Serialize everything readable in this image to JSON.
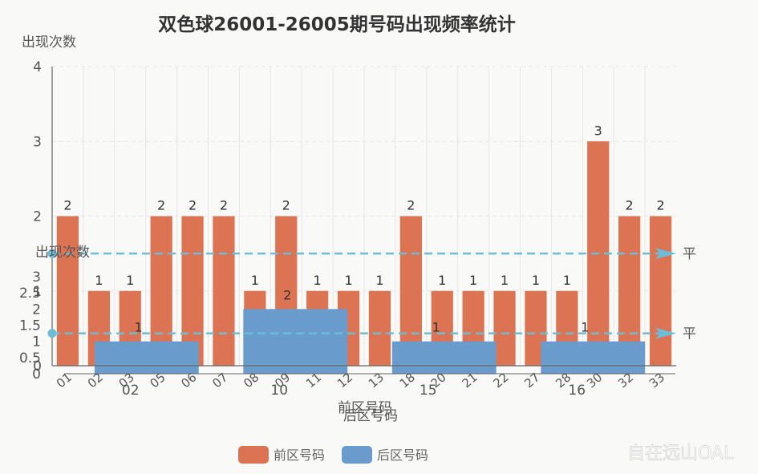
{
  "chart_title": "双色球26001-26005期号码出现频率统计",
  "watermark": "自在远山OAL",
  "colors": {
    "front": "#dc7453",
    "back": "#6a9bcd",
    "mean_line": "#6dbcd8",
    "grid": "#e6e6e6",
    "axis": "#666666"
  },
  "chart_data": [
    {
      "type": "bar",
      "ylabel": "出现次数",
      "xlabel": "前区号码",
      "ylim": [
        0,
        4
      ],
      "yticks": [
        "0",
        "1",
        "2",
        "3",
        "4"
      ],
      "grid": true,
      "legend_position": "bottom",
      "mean_line_label": "平",
      "categories": [
        "01",
        "02",
        "03",
        "05",
        "06",
        "07",
        "08",
        "09",
        "11",
        "12",
        "13",
        "18",
        "20",
        "21",
        "22",
        "27",
        "28",
        "30",
        "32",
        "33"
      ],
      "series": [
        {
          "name": "前区号码",
          "values": [
            2,
            1,
            1,
            2,
            2,
            2,
            1,
            2,
            1,
            1,
            1,
            2,
            1,
            1,
            1,
            1,
            1,
            3,
            2,
            2
          ]
        }
      ]
    },
    {
      "type": "bar",
      "ylabel": "出现次数",
      "xlabel": "后区号码",
      "ylim": [
        0,
        3
      ],
      "yticks": [
        "0",
        "0.5",
        "1",
        "1.5",
        "2",
        "2.5",
        "3"
      ],
      "mean_line_label": "平",
      "categories": [
        "02",
        "10",
        "15",
        "16"
      ],
      "series": [
        {
          "name": "后区号码",
          "values": [
            1,
            2,
            1,
            1
          ]
        }
      ]
    }
  ]
}
